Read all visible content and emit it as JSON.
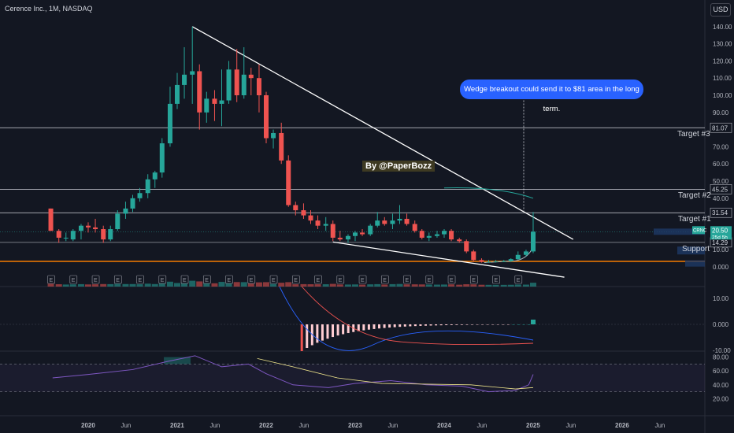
{
  "header": {
    "symbol_title": "Cerence Inc., 1M, NASDAQ",
    "currency": "USD"
  },
  "annotations": {
    "note": "Wedge breakout could send it to $81 area in the long term.",
    "watermark": "By @PaperBozz",
    "target3": "Target #3",
    "target2": "Target #2",
    "target1": "Target #1",
    "support": "Support"
  },
  "colors": {
    "up": "#26a69a",
    "down": "#ef5350",
    "background": "#131722",
    "accent": "#2962ff",
    "support_line": "#f57c00"
  },
  "chart_data": {
    "type": "candlestick",
    "title": "Cerence Inc., 1M, NASDAQ",
    "price_axis": {
      "ticks": [
        140,
        130,
        120,
        110,
        100,
        90,
        80,
        70,
        60,
        50,
        40,
        30,
        20,
        10,
        0
      ],
      "tick_labels": [
        "140.00",
        "130.00",
        "120.00",
        "110.00",
        "100.00",
        "90.00",
        "80.00",
        "70.00",
        "60.00",
        "50.00",
        "40.00",
        "30.00",
        "20.00",
        "10.00",
        "0.000"
      ]
    },
    "time_axis": {
      "labels": [
        {
          "t": 2020.0,
          "text": "2020"
        },
        {
          "t": 2020.42,
          "text": "Jun"
        },
        {
          "t": 2021.0,
          "text": "2021"
        },
        {
          "t": 2021.42,
          "text": "Jun"
        },
        {
          "t": 2022.0,
          "text": "2022"
        },
        {
          "t": 2022.42,
          "text": "Jun"
        },
        {
          "t": 2023.0,
          "text": "2023"
        },
        {
          "t": 2023.42,
          "text": "Jun"
        },
        {
          "t": 2024.0,
          "text": "2024"
        },
        {
          "t": 2024.42,
          "text": "Jun"
        },
        {
          "t": 2025.0,
          "text": "2025"
        },
        {
          "t": 2025.42,
          "text": "Jun"
        },
        {
          "t": 2026.0,
          "text": "2026"
        },
        {
          "t": 2026.42,
          "text": "Jun"
        }
      ]
    },
    "levels": [
      {
        "name": "Target #3",
        "value": 81.07,
        "label": "81.07"
      },
      {
        "name": "Target #2",
        "value": 45.25,
        "label": "45.25"
      },
      {
        "name": "Target #1",
        "value": 31.54,
        "label": "31.54"
      },
      {
        "name": "Support",
        "value": 14.29,
        "label": "14.29"
      }
    ],
    "last_price": {
      "symbol": "CRNC",
      "value": 20.5,
      "label": "20.50",
      "countdown": "25d 5h"
    },
    "candles": [
      {
        "t": 2019.58,
        "o": 34,
        "h": 34,
        "l": 21,
        "c": 21
      },
      {
        "t": 2019.67,
        "o": 21,
        "h": 22,
        "l": 14,
        "c": 17
      },
      {
        "t": 2019.75,
        "o": 17,
        "h": 20,
        "l": 15,
        "c": 17
      },
      {
        "t": 2019.83,
        "o": 16,
        "h": 22,
        "l": 15,
        "c": 21
      },
      {
        "t": 2019.92,
        "o": 21,
        "h": 25,
        "l": 16,
        "c": 24
      },
      {
        "t": 2020.0,
        "o": 24,
        "h": 26,
        "l": 20,
        "c": 23
      },
      {
        "t": 2020.08,
        "o": 23,
        "h": 28,
        "l": 20,
        "c": 22
      },
      {
        "t": 2020.17,
        "o": 22,
        "h": 24,
        "l": 14,
        "c": 16
      },
      {
        "t": 2020.25,
        "o": 16,
        "h": 24,
        "l": 15,
        "c": 22
      },
      {
        "t": 2020.33,
        "o": 22,
        "h": 33,
        "l": 21,
        "c": 31
      },
      {
        "t": 2020.42,
        "o": 31,
        "h": 38,
        "l": 28,
        "c": 34
      },
      {
        "t": 2020.5,
        "o": 34,
        "h": 42,
        "l": 32,
        "c": 40
      },
      {
        "t": 2020.58,
        "o": 40,
        "h": 46,
        "l": 38,
        "c": 43
      },
      {
        "t": 2020.67,
        "o": 43,
        "h": 54,
        "l": 40,
        "c": 51
      },
      {
        "t": 2020.75,
        "o": 51,
        "h": 56,
        "l": 46,
        "c": 55
      },
      {
        "t": 2020.83,
        "o": 55,
        "h": 75,
        "l": 52,
        "c": 72
      },
      {
        "t": 2020.92,
        "o": 72,
        "h": 105,
        "l": 70,
        "c": 95
      },
      {
        "t": 2021.0,
        "o": 95,
        "h": 113,
        "l": 92,
        "c": 106
      },
      {
        "t": 2021.08,
        "o": 106,
        "h": 128,
        "l": 98,
        "c": 112
      },
      {
        "t": 2021.17,
        "o": 112,
        "h": 140,
        "l": 95,
        "c": 114
      },
      {
        "t": 2021.25,
        "o": 114,
        "h": 118,
        "l": 80,
        "c": 90
      },
      {
        "t": 2021.33,
        "o": 90,
        "h": 102,
        "l": 84,
        "c": 98
      },
      {
        "t": 2021.42,
        "o": 98,
        "h": 103,
        "l": 85,
        "c": 95
      },
      {
        "t": 2021.5,
        "o": 95,
        "h": 115,
        "l": 82,
        "c": 97
      },
      {
        "t": 2021.58,
        "o": 97,
        "h": 120,
        "l": 95,
        "c": 115
      },
      {
        "t": 2021.67,
        "o": 115,
        "h": 127,
        "l": 96,
        "c": 100
      },
      {
        "t": 2021.75,
        "o": 100,
        "h": 128,
        "l": 98,
        "c": 112
      },
      {
        "t": 2021.83,
        "o": 112,
        "h": 116,
        "l": 100,
        "c": 110
      },
      {
        "t": 2021.92,
        "o": 110,
        "h": 118,
        "l": 90,
        "c": 100
      },
      {
        "t": 2022.0,
        "o": 100,
        "h": 102,
        "l": 72,
        "c": 75
      },
      {
        "t": 2022.08,
        "o": 75,
        "h": 80,
        "l": 69,
        "c": 78
      },
      {
        "t": 2022.17,
        "o": 78,
        "h": 84,
        "l": 60,
        "c": 62
      },
      {
        "t": 2022.25,
        "o": 62,
        "h": 65,
        "l": 35,
        "c": 36
      },
      {
        "t": 2022.33,
        "o": 36,
        "h": 38,
        "l": 30,
        "c": 33
      },
      {
        "t": 2022.42,
        "o": 33,
        "h": 37,
        "l": 28,
        "c": 30
      },
      {
        "t": 2022.5,
        "o": 30,
        "h": 33,
        "l": 25,
        "c": 27
      },
      {
        "t": 2022.58,
        "o": 27,
        "h": 30,
        "l": 22,
        "c": 24
      },
      {
        "t": 2022.67,
        "o": 24,
        "h": 29,
        "l": 21,
        "c": 25
      },
      {
        "t": 2022.75,
        "o": 25,
        "h": 27,
        "l": 15,
        "c": 17
      },
      {
        "t": 2022.83,
        "o": 17,
        "h": 21,
        "l": 15,
        "c": 16
      },
      {
        "t": 2022.92,
        "o": 16,
        "h": 19,
        "l": 14,
        "c": 18
      },
      {
        "t": 2023.0,
        "o": 18,
        "h": 21,
        "l": 15,
        "c": 20
      },
      {
        "t": 2023.08,
        "o": 20,
        "h": 22,
        "l": 18,
        "c": 19
      },
      {
        "t": 2023.17,
        "o": 19,
        "h": 25,
        "l": 18,
        "c": 24
      },
      {
        "t": 2023.25,
        "o": 24,
        "h": 32,
        "l": 23,
        "c": 27
      },
      {
        "t": 2023.33,
        "o": 27,
        "h": 29,
        "l": 24,
        "c": 25
      },
      {
        "t": 2023.42,
        "o": 25,
        "h": 31,
        "l": 22,
        "c": 27
      },
      {
        "t": 2023.5,
        "o": 27,
        "h": 36,
        "l": 25,
        "c": 28
      },
      {
        "t": 2023.58,
        "o": 28,
        "h": 31,
        "l": 24,
        "c": 25
      },
      {
        "t": 2023.67,
        "o": 25,
        "h": 27,
        "l": 20,
        "c": 21
      },
      {
        "t": 2023.75,
        "o": 21,
        "h": 22,
        "l": 16,
        "c": 17
      },
      {
        "t": 2023.83,
        "o": 17,
        "h": 20,
        "l": 15,
        "c": 18
      },
      {
        "t": 2023.92,
        "o": 18,
        "h": 21,
        "l": 17,
        "c": 19
      },
      {
        "t": 2024.0,
        "o": 19,
        "h": 22,
        "l": 17,
        "c": 21
      },
      {
        "t": 2024.08,
        "o": 21,
        "h": 22,
        "l": 15,
        "c": 16
      },
      {
        "t": 2024.17,
        "o": 16,
        "h": 17,
        "l": 14,
        "c": 15
      },
      {
        "t": 2024.25,
        "o": 15,
        "h": 16,
        "l": 8,
        "c": 9
      },
      {
        "t": 2024.33,
        "o": 9,
        "h": 10,
        "l": 3,
        "c": 4
      },
      {
        "t": 2024.42,
        "o": 4,
        "h": 5,
        "l": 2.5,
        "c": 3
      },
      {
        "t": 2024.5,
        "o": 3,
        "h": 4,
        "l": 2.5,
        "c": 3
      },
      {
        "t": 2024.58,
        "o": 3,
        "h": 4,
        "l": 2.6,
        "c": 3.2
      },
      {
        "t": 2024.67,
        "o": 3.2,
        "h": 4,
        "l": 2.8,
        "c": 3.3
      },
      {
        "t": 2024.75,
        "o": 3.3,
        "h": 5,
        "l": 3,
        "c": 4.5
      },
      {
        "t": 2024.83,
        "o": 4.5,
        "h": 9,
        "l": 4,
        "c": 7
      },
      {
        "t": 2024.92,
        "o": 7,
        "h": 10,
        "l": 6,
        "c": 9
      },
      {
        "t": 2025.0,
        "o": 9,
        "h": 32,
        "l": 8,
        "c": 20.5
      }
    ],
    "indicator_1": {
      "ticks": [
        10,
        0,
        -10
      ],
      "tick_labels": [
        "10.00",
        "0.000",
        "-10.00"
      ]
    },
    "indicator_2": {
      "ticks": [
        80,
        60,
        40,
        20
      ],
      "tick_labels": [
        "80.00",
        "60.00",
        "40.00",
        "20.00"
      ]
    }
  }
}
